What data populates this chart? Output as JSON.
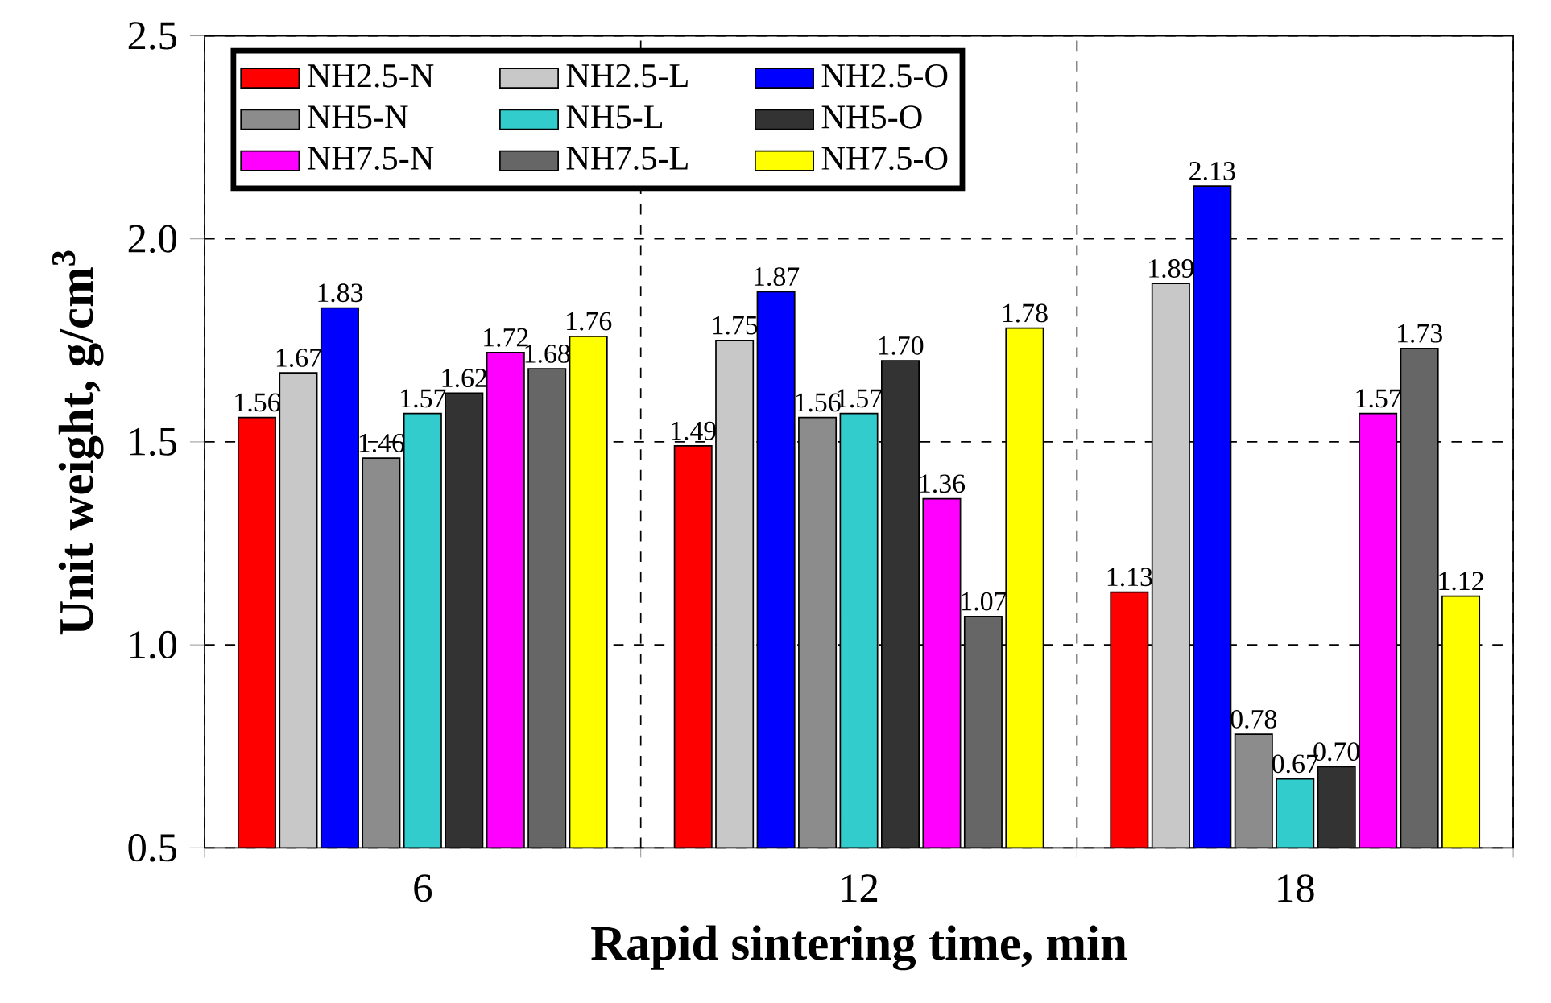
{
  "chart_data": {
    "type": "bar",
    "xlabel": "Rapid sintering time, min",
    "ylabel": "Unit weight, g/cm$^{3}$",
    "categories": [
      "6",
      "12",
      "18"
    ],
    "series": [
      {
        "name": "NH2.5-N",
        "color": "#ff0000",
        "values": [
          1.56,
          1.49,
          1.13
        ],
        "value_labels": [
          "1.56",
          "1.49",
          "1.13"
        ]
      },
      {
        "name": "NH2.5-L",
        "color": "#c8c8c8",
        "values": [
          1.67,
          1.75,
          1.89
        ],
        "value_labels": [
          "1.67",
          "1.75",
          "1.89"
        ]
      },
      {
        "name": "NH2.5-O",
        "color": "#0000ff",
        "values": [
          1.83,
          1.87,
          2.13
        ],
        "value_labels": [
          "1.83",
          "1.87",
          "2.13"
        ]
      },
      {
        "name": "NH5-N",
        "color": "#8c8c8c",
        "values": [
          1.46,
          1.56,
          0.78
        ],
        "value_labels": [
          "1.46",
          "1.56",
          "0.78"
        ]
      },
      {
        "name": "NH5-L",
        "color": "#33cccc",
        "values": [
          1.57,
          1.57,
          0.67
        ],
        "value_labels": [
          "1.57",
          "1.57",
          "0.67"
        ]
      },
      {
        "name": "NH5-O",
        "color": "#333333",
        "values": [
          1.62,
          1.7,
          0.7
        ],
        "value_labels": [
          "1.62",
          "1.70",
          "0.70"
        ]
      },
      {
        "name": "NH7.5-N",
        "color": "#ff00ff",
        "values": [
          1.72,
          1.36,
          1.57
        ],
        "value_labels": [
          "1.72",
          "1.36",
          "1.57"
        ]
      },
      {
        "name": "NH7.5-L",
        "color": "#666666",
        "values": [
          1.68,
          1.07,
          1.73
        ],
        "value_labels": [
          "1.68",
          "1.07",
          "1.73"
        ]
      },
      {
        "name": "NH7.5-O",
        "color": "#ffff00",
        "values": [
          1.76,
          1.78,
          1.12
        ],
        "value_labels": [
          "1.76",
          "1.78",
          "1.12"
        ]
      }
    ],
    "ylim": [
      0.5,
      2.5
    ],
    "yticks": [
      {
        "value": 0.5,
        "label": "0.5"
      },
      {
        "value": 1.0,
        "label": "1.0"
      },
      {
        "value": 1.5,
        "label": "1.5"
      },
      {
        "value": 2.0,
        "label": "2.0"
      },
      {
        "value": 2.5,
        "label": "2.5"
      }
    ],
    "grid": true,
    "legend": "top left"
  }
}
